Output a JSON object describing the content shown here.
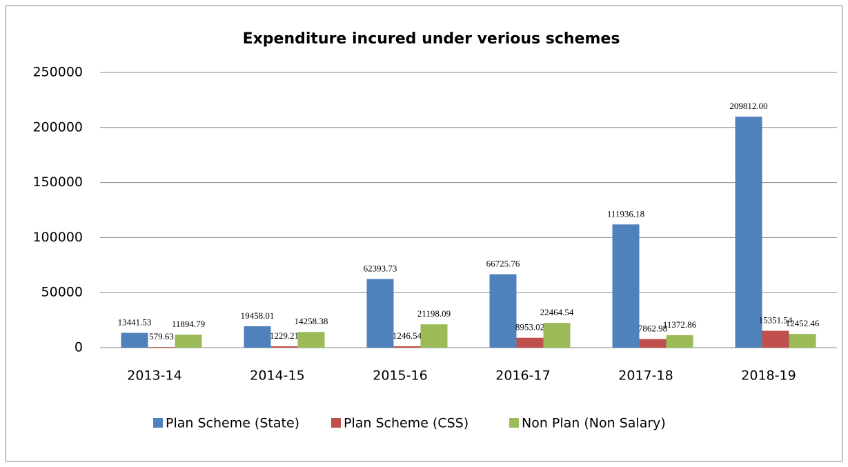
{
  "chart_data": {
    "type": "bar",
    "title": "Expenditure incured under verious schemes",
    "categories": [
      "2013-14",
      "2014-15",
      "2015-16",
      "2016-17",
      "2017-18",
      "2018-19"
    ],
    "series": [
      {
        "name": "Plan Scheme (State)",
        "color": "#4f81bd",
        "values": [
          13441.53,
          19458.01,
          62393.73,
          66725.76,
          111936.18,
          209812
        ],
        "value_labels": [
          "13441.53",
          "19458.01",
          "62393.73",
          "66725.76",
          "111936.18",
          "209812.00"
        ]
      },
      {
        "name": "Plan Scheme (CSS)",
        "color": "#c0504d",
        "values": [
          579.63,
          1229.21,
          1246.54,
          8953.02,
          7862.98,
          15351.54
        ],
        "value_labels": [
          "579.63",
          "1229.21",
          "1246.54",
          "8953.02",
          "7862.98",
          "15351.54"
        ]
      },
      {
        "name": "Non Plan (Non Salary)",
        "color": "#9bbb59",
        "values": [
          11894.79,
          14258.38,
          21198.09,
          22464.54,
          11372.86,
          12452.46
        ],
        "value_labels": [
          "11894.79",
          "14258.38",
          "21198.09",
          "22464.54",
          "11372.86",
          "12452.46"
        ]
      }
    ],
    "ylim": [
      0,
      250000
    ],
    "yticks": [
      0,
      50000,
      100000,
      150000,
      200000,
      250000
    ],
    "grid": true,
    "legend": "bottom"
  }
}
